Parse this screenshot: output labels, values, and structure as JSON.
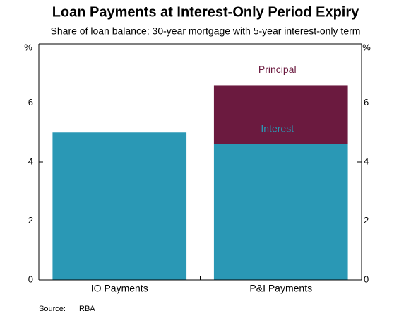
{
  "chart_data": {
    "type": "bar",
    "stacked": true,
    "title": "Loan Payments at Interest-Only Period Expiry",
    "subtitle": "Share of loan balance; 30-year mortgage with 5-year interest-only term",
    "y_unit": "%",
    "categories": [
      "IO Payments",
      "P&I Payments"
    ],
    "series": [
      {
        "name": "Interest",
        "color": "#2a98b5",
        "values": [
          5.0,
          4.6
        ]
      },
      {
        "name": "Principal",
        "color": "#6b1a3f",
        "values": [
          null,
          2.0
        ]
      }
    ],
    "ylim": [
      0,
      8
    ],
    "yticks": [
      0,
      2,
      4,
      6
    ],
    "y2lim": [
      0,
      8
    ],
    "y2ticks": [
      0,
      2,
      4,
      6
    ],
    "grid": false,
    "source_label": "Source:",
    "source": "RBA"
  }
}
